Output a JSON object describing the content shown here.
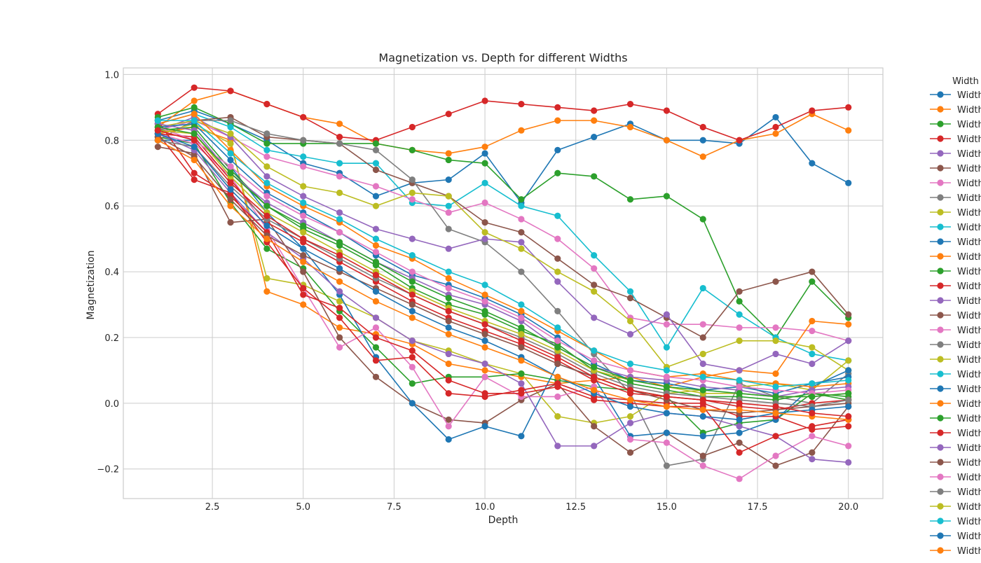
{
  "chart_data": {
    "type": "line",
    "title": "Magnetization vs. Depth for different Widths",
    "xlabel": "Depth",
    "ylabel": "Magnetization",
    "xlim": [
      0.05,
      20.95
    ],
    "ylim": [
      -0.29,
      1.02
    ],
    "xticks": [
      2.5,
      5.0,
      7.5,
      10.0,
      12.5,
      15.0,
      17.5,
      20.0
    ],
    "xtick_labels": [
      "2.5",
      "5.0",
      "7.5",
      "10.0",
      "12.5",
      "15.0",
      "17.5",
      "20.0"
    ],
    "yticks": [
      -0.2,
      0.0,
      0.2,
      0.4,
      0.6,
      0.8,
      1.0
    ],
    "ytick_labels": [
      "−0.2",
      "0.0",
      "0.2",
      "0.4",
      "0.6",
      "0.8",
      "1.0"
    ],
    "grid": true,
    "legend": {
      "title": "Width",
      "placement": "outside right, upper",
      "visible_labels": [
        "Width",
        "Width",
        "Width",
        "Width",
        "Width",
        "Width",
        "Width",
        "Width",
        "Width",
        "Width",
        "Width",
        "Width",
        "Width",
        "Width",
        "Width",
        "Width",
        "Width",
        "Width",
        "Width",
        "Width",
        "Width",
        "Width",
        "Width",
        "Width",
        "Width",
        "Width",
        "Width",
        "Width",
        "Width",
        "Width",
        "Width",
        "Width",
        "Width"
      ]
    },
    "palette": [
      "#1f77b4",
      "#ff7f0e",
      "#2ca02c",
      "#d62728",
      "#9467bd",
      "#8c564b",
      "#e377c2",
      "#7f7f7f",
      "#bcbd22",
      "#17becf"
    ],
    "x": [
      1,
      2,
      3,
      4,
      5,
      6,
      7,
      8,
      9,
      10,
      11,
      12,
      13,
      14,
      15,
      16,
      17,
      18,
      19,
      20
    ],
    "series": [
      {
        "color": "#1f77b4",
        "values": [
          0.86,
          0.89,
          0.85,
          0.8,
          0.73,
          0.7,
          0.63,
          0.67,
          0.68,
          0.76,
          0.61,
          0.77,
          0.81,
          0.85,
          0.8,
          0.8,
          0.79,
          0.87,
          0.73,
          0.67
        ]
      },
      {
        "color": "#ff7f0e",
        "values": [
          0.84,
          0.92,
          0.95,
          0.91,
          0.87,
          0.85,
          0.79,
          0.77,
          0.76,
          0.78,
          0.83,
          0.86,
          0.86,
          0.84,
          0.8,
          0.75,
          0.8,
          0.82,
          0.88,
          0.83
        ]
      },
      {
        "color": "#d62728",
        "values": [
          0.88,
          0.96,
          0.95,
          0.91,
          0.87,
          0.81,
          0.8,
          0.84,
          0.88,
          0.92,
          0.91,
          0.9,
          0.89,
          0.91,
          0.89,
          0.84,
          0.8,
          0.84,
          0.89,
          0.9
        ]
      },
      {
        "color": "#2ca02c",
        "values": [
          0.87,
          0.9,
          0.85,
          0.79,
          0.79,
          0.79,
          0.79,
          0.77,
          0.74,
          0.73,
          0.62,
          0.7,
          0.69,
          0.62,
          0.63,
          0.56,
          0.31,
          0.2,
          0.37,
          0.26
        ]
      },
      {
        "color": "#17becf",
        "values": [
          0.85,
          0.88,
          0.84,
          0.77,
          0.75,
          0.73,
          0.73,
          0.61,
          0.6,
          0.67,
          0.6,
          0.57,
          0.45,
          0.34,
          0.17,
          0.35,
          0.27,
          0.2,
          0.15,
          0.13
        ]
      },
      {
        "color": "#e377c2",
        "values": [
          0.83,
          0.86,
          0.81,
          0.75,
          0.72,
          0.69,
          0.66,
          0.62,
          0.58,
          0.61,
          0.56,
          0.5,
          0.41,
          0.26,
          0.24,
          0.24,
          0.23,
          0.23,
          0.22,
          0.19
        ]
      },
      {
        "color": "#8c564b",
        "values": [
          0.8,
          0.86,
          0.87,
          0.81,
          0.8,
          0.79,
          0.71,
          0.67,
          0.63,
          0.55,
          0.52,
          0.44,
          0.36,
          0.32,
          0.26,
          0.2,
          0.34,
          0.37,
          0.4,
          0.27
        ]
      },
      {
        "color": "#7f7f7f",
        "values": [
          0.8,
          0.86,
          0.86,
          0.82,
          0.8,
          0.79,
          0.77,
          0.68,
          0.53,
          0.49,
          0.4,
          0.28,
          0.15,
          0.03,
          -0.19,
          -0.17,
          0.06,
          0.02,
          0.0,
          0.09
        ]
      },
      {
        "color": "#ff7f0e",
        "values": [
          0.82,
          0.84,
          0.8,
          0.34,
          0.3,
          0.23,
          0.21,
          0.18,
          0.12,
          0.1,
          0.08,
          0.06,
          0.07,
          0.08,
          0.05,
          0.08,
          0.1,
          0.09,
          0.25,
          0.24
        ]
      },
      {
        "color": "#bcbd22",
        "values": [
          0.82,
          0.85,
          0.79,
          0.38,
          0.36,
          0.31,
          0.26,
          0.19,
          0.16,
          0.12,
          0.09,
          -0.04,
          -0.06,
          -0.04,
          0.03,
          0.04,
          0.05,
          0.06,
          0.04,
          0.13
        ]
      },
      {
        "color": "#9467bd",
        "values": [
          0.83,
          0.87,
          0.81,
          0.69,
          0.63,
          0.58,
          0.53,
          0.5,
          0.47,
          0.5,
          0.49,
          0.37,
          0.26,
          0.21,
          0.27,
          0.12,
          0.1,
          0.15,
          0.12,
          0.19
        ]
      },
      {
        "color": "#bcbd22",
        "values": [
          0.84,
          0.86,
          0.82,
          0.72,
          0.66,
          0.64,
          0.6,
          0.64,
          0.63,
          0.52,
          0.47,
          0.4,
          0.34,
          0.25,
          0.11,
          0.15,
          0.19,
          0.19,
          0.17,
          0.1
        ]
      },
      {
        "color": "#2ca02c",
        "values": [
          0.81,
          0.79,
          0.61,
          0.47,
          0.41,
          0.28,
          0.17,
          0.06,
          0.08,
          0.08,
          0.09,
          0.07,
          0.05,
          0.04,
          0.02,
          -0.09,
          -0.06,
          -0.05,
          0.03,
          0.01
        ]
      },
      {
        "color": "#8c564b",
        "values": [
          0.78,
          0.76,
          0.55,
          0.56,
          0.4,
          0.2,
          0.08,
          -0.0,
          -0.05,
          -0.06,
          0.01,
          0.06,
          -0.07,
          -0.15,
          -0.09,
          -0.16,
          -0.12,
          -0.19,
          -0.15,
          -0.01
        ]
      },
      {
        "color": "#1f77b4",
        "values": [
          0.8,
          0.8,
          0.72,
          0.58,
          0.47,
          0.33,
          0.14,
          0.0,
          -0.11,
          -0.07,
          -0.1,
          0.12,
          0.08,
          -0.1,
          -0.09,
          -0.1,
          -0.09,
          -0.05,
          0.05,
          0.1
        ]
      },
      {
        "color": "#e377c2",
        "values": [
          0.82,
          0.79,
          0.69,
          0.53,
          0.35,
          0.17,
          0.23,
          0.11,
          -0.07,
          0.08,
          0.02,
          0.02,
          0.05,
          -0.11,
          -0.12,
          -0.19,
          -0.23,
          -0.16,
          -0.1,
          -0.13
        ]
      },
      {
        "color": "#9467bd",
        "values": [
          0.82,
          0.77,
          0.64,
          0.52,
          0.44,
          0.34,
          0.26,
          0.19,
          0.15,
          0.12,
          0.06,
          -0.13,
          -0.13,
          -0.06,
          -0.03,
          -0.04,
          -0.07,
          -0.1,
          -0.17,
          -0.18
        ]
      },
      {
        "color": "#d62728",
        "values": [
          0.82,
          0.68,
          0.64,
          0.49,
          0.35,
          0.26,
          0.13,
          0.14,
          0.03,
          0.02,
          0.04,
          0.06,
          0.02,
          0.01,
          0.0,
          0.0,
          -0.04,
          -0.04,
          -0.08,
          -0.07
        ]
      },
      {
        "color": "#d62728",
        "values": [
          0.86,
          0.7,
          0.63,
          0.52,
          0.33,
          0.29,
          0.2,
          0.16,
          0.07,
          0.03,
          0.03,
          0.05,
          0.01,
          0.0,
          -0.01,
          -0.01,
          -0.15,
          -0.1,
          -0.07,
          -0.05
        ]
      },
      {
        "color": "#1f77b4",
        "values": [
          0.84,
          0.85,
          0.74,
          0.64,
          0.58,
          0.52,
          0.45,
          0.39,
          0.36,
          0.32,
          0.27,
          0.2,
          0.12,
          0.07,
          0.06,
          0.04,
          0.05,
          0.03,
          0.06,
          0.08
        ]
      },
      {
        "color": "#ff7f0e",
        "values": [
          0.85,
          0.88,
          0.77,
          0.66,
          0.6,
          0.55,
          0.48,
          0.44,
          0.38,
          0.33,
          0.28,
          0.22,
          0.16,
          0.1,
          0.08,
          0.09,
          0.07,
          0.06,
          0.05,
          0.06
        ]
      },
      {
        "color": "#2ca02c",
        "values": [
          0.83,
          0.84,
          0.71,
          0.6,
          0.53,
          0.48,
          0.42,
          0.35,
          0.3,
          0.27,
          0.22,
          0.18,
          0.1,
          0.06,
          0.04,
          0.02,
          0.02,
          0.01,
          0.03,
          0.02
        ]
      },
      {
        "color": "#d62728",
        "values": [
          0.82,
          0.81,
          0.68,
          0.55,
          0.49,
          0.43,
          0.37,
          0.31,
          0.26,
          0.22,
          0.18,
          0.13,
          0.07,
          0.03,
          0.02,
          0.01,
          -0.01,
          -0.02,
          0.0,
          0.01
        ]
      },
      {
        "color": "#9467bd",
        "values": [
          0.85,
          0.83,
          0.7,
          0.61,
          0.55,
          0.49,
          0.43,
          0.38,
          0.33,
          0.3,
          0.25,
          0.17,
          0.11,
          0.08,
          0.07,
          0.05,
          0.04,
          0.02,
          0.04,
          0.05
        ]
      },
      {
        "color": "#8c564b",
        "values": [
          0.81,
          0.75,
          0.62,
          0.51,
          0.45,
          0.4,
          0.35,
          0.3,
          0.25,
          0.21,
          0.17,
          0.12,
          0.08,
          0.04,
          0.01,
          -0.02,
          -0.03,
          -0.02,
          -0.01,
          0.0
        ]
      },
      {
        "color": "#e377c2",
        "values": [
          0.84,
          0.8,
          0.72,
          0.63,
          0.57,
          0.52,
          0.46,
          0.4,
          0.35,
          0.31,
          0.26,
          0.19,
          0.13,
          0.1,
          0.08,
          0.07,
          0.05,
          0.04,
          0.03,
          0.04
        ]
      },
      {
        "color": "#7f7f7f",
        "values": [
          0.8,
          0.78,
          0.66,
          0.56,
          0.5,
          0.44,
          0.38,
          0.33,
          0.28,
          0.24,
          0.2,
          0.15,
          0.09,
          0.05,
          0.03,
          0.02,
          0.01,
          0.0,
          -0.01,
          0.01
        ]
      },
      {
        "color": "#bcbd22",
        "values": [
          0.83,
          0.82,
          0.69,
          0.58,
          0.52,
          0.46,
          0.4,
          0.34,
          0.29,
          0.25,
          0.21,
          0.16,
          0.1,
          0.07,
          0.05,
          0.03,
          0.03,
          0.02,
          0.02,
          0.03
        ]
      },
      {
        "color": "#17becf",
        "values": [
          0.86,
          0.86,
          0.76,
          0.67,
          0.61,
          0.56,
          0.5,
          0.45,
          0.4,
          0.36,
          0.3,
          0.23,
          0.16,
          0.12,
          0.1,
          0.08,
          0.07,
          0.05,
          0.06,
          0.07
        ]
      },
      {
        "color": "#1f77b4",
        "values": [
          0.82,
          0.78,
          0.65,
          0.54,
          0.47,
          0.41,
          0.34,
          0.28,
          0.23,
          0.19,
          0.14,
          0.08,
          0.03,
          -0.01,
          -0.03,
          -0.04,
          -0.05,
          -0.03,
          -0.02,
          -0.01
        ]
      },
      {
        "color": "#ff7f0e",
        "values": [
          0.8,
          0.74,
          0.6,
          0.5,
          0.43,
          0.37,
          0.31,
          0.26,
          0.21,
          0.17,
          0.13,
          0.08,
          0.04,
          0.01,
          -0.01,
          -0.02,
          -0.02,
          -0.03,
          -0.04,
          -0.05
        ]
      },
      {
        "color": "#2ca02c",
        "values": [
          0.84,
          0.82,
          0.7,
          0.6,
          0.54,
          0.49,
          0.43,
          0.37,
          0.32,
          0.28,
          0.23,
          0.17,
          0.11,
          0.07,
          0.05,
          0.04,
          0.03,
          0.02,
          0.02,
          0.03
        ]
      },
      {
        "color": "#d62728",
        "values": [
          0.83,
          0.8,
          0.67,
          0.57,
          0.5,
          0.45,
          0.39,
          0.33,
          0.28,
          0.24,
          0.19,
          0.14,
          0.08,
          0.04,
          0.02,
          0.01,
          0.0,
          -0.01,
          -0.03,
          -0.04
        ]
      }
    ]
  }
}
